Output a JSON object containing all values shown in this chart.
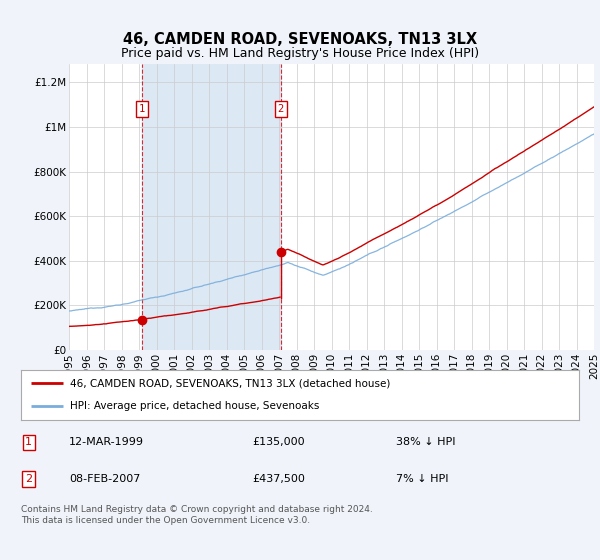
{
  "title": "46, CAMDEN ROAD, SEVENOAKS, TN13 3LX",
  "subtitle": "Price paid vs. HM Land Registry's House Price Index (HPI)",
  "ylabel_ticks": [
    "£0",
    "£200K",
    "£400K",
    "£600K",
    "£800K",
    "£1M",
    "£1.2M"
  ],
  "ytick_values": [
    0,
    200000,
    400000,
    600000,
    800000,
    1000000,
    1200000
  ],
  "ylim": [
    0,
    1280000
  ],
  "xlim_start": 1995.0,
  "xlim_end": 2025.0,
  "purchase1_x": 1999.19,
  "purchase1_y": 135000,
  "purchase2_x": 2007.09,
  "purchase2_y": 437500,
  "red_line_color": "#cc0000",
  "blue_line_color": "#7aaddb",
  "vline_color": "#cc0000",
  "shade_color": "#dce9f5",
  "bg_color": "#f0f4fa",
  "plot_bg_color": "#ffffff",
  "grid_color": "#cccccc",
  "legend_label_red": "46, CAMDEN ROAD, SEVENOAKS, TN13 3LX (detached house)",
  "legend_label_blue": "HPI: Average price, detached house, Sevenoaks",
  "table_row1": [
    "1",
    "12-MAR-1999",
    "£135,000",
    "38% ↓ HPI"
  ],
  "table_row2": [
    "2",
    "08-FEB-2007",
    "£437,500",
    "7% ↓ HPI"
  ],
  "footnote": "Contains HM Land Registry data © Crown copyright and database right 2024.\nThis data is licensed under the Open Government Licence v3.0.",
  "title_fontsize": 10.5,
  "subtitle_fontsize": 9,
  "tick_fontsize": 7.5,
  "footnote_fontsize": 6.5
}
